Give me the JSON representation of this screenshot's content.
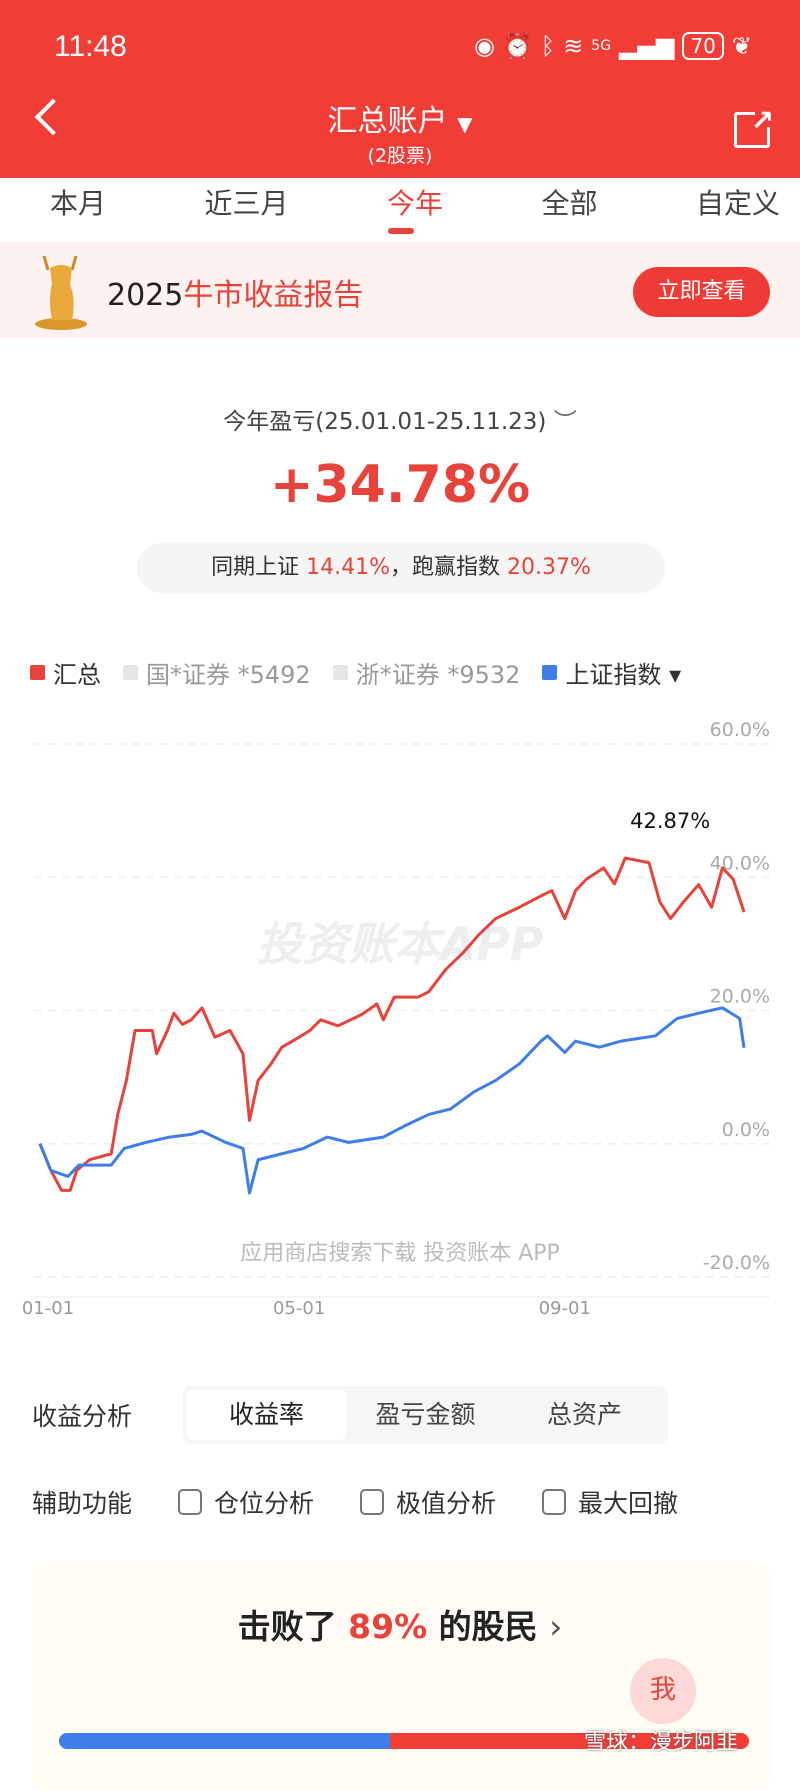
{
  "status": {
    "time": "11:48",
    "network": "5G",
    "battery": "70"
  },
  "header": {
    "title": "汇总账户",
    "subtitle": "(2股票)"
  },
  "tabs": [
    {
      "label": "本月"
    },
    {
      "label": "近三月"
    },
    {
      "label": "今年",
      "active": true
    },
    {
      "label": "全部"
    },
    {
      "label": "自定义"
    }
  ],
  "banner": {
    "year": "2025",
    "text": "牛市收益报告",
    "button": "立即查看"
  },
  "summary": {
    "label": "今年盈亏(25.01.01-25.11.23)",
    "value": "+34.78%",
    "compare_prefix": "同期上证",
    "index_return": "14.41%",
    "compare_mid": "，跑赢指数",
    "excess": "20.37%"
  },
  "legend": [
    {
      "label": "汇总",
      "color": "#e8433b"
    },
    {
      "label": "国*证券 *5492",
      "color": "#e6e6e6"
    },
    {
      "label": "浙*证券 *9532",
      "color": "#e6e6e6"
    },
    {
      "label": "上证指数 ▾",
      "color": "#3f7de8"
    }
  ],
  "watermark": {
    "main": "投资账本APP",
    "bottom": "应用商店搜索下载 投资账本 APP"
  },
  "chart_data": {
    "type": "line",
    "xlabel": "",
    "ylabel": "",
    "x_unit": "day of year 2025",
    "xlim": [
      0,
      326
    ],
    "ylim": [
      -20,
      60
    ],
    "yticks": [
      "60.0%",
      "40.0%",
      "20.0%",
      "0.0%",
      "-20.0%"
    ],
    "ytick_values": [
      60,
      40,
      20,
      0,
      -20
    ],
    "xticks": [
      {
        "label": "01-01",
        "day": 0
      },
      {
        "label": "05-01",
        "day": 120
      },
      {
        "label": "09-01",
        "day": 243
      }
    ],
    "max_label": "42.87%",
    "max_point": [
      271,
      42.87
    ],
    "grid": true,
    "series": [
      {
        "name": "汇总",
        "color": "#e8433b",
        "points": [
          [
            0,
            0
          ],
          [
            5,
            -4
          ],
          [
            10,
            -7
          ],
          [
            14,
            -7
          ],
          [
            17,
            -4
          ],
          [
            23,
            -2.4
          ],
          [
            33,
            -1.5
          ],
          [
            36,
            4.4
          ],
          [
            40,
            9.5
          ],
          [
            44,
            17
          ],
          [
            52,
            17
          ],
          [
            54,
            13.5
          ],
          [
            59,
            17
          ],
          [
            62,
            19.6
          ],
          [
            66,
            17.9
          ],
          [
            70,
            18.6
          ],
          [
            75,
            20.4
          ],
          [
            81,
            16
          ],
          [
            88,
            17
          ],
          [
            94,
            13.5
          ],
          [
            97,
            3.5
          ],
          [
            101,
            9.5
          ],
          [
            107,
            12
          ],
          [
            112,
            14.5
          ],
          [
            120,
            16
          ],
          [
            125,
            17
          ],
          [
            130,
            18.6
          ],
          [
            138,
            17.7
          ],
          [
            149,
            19.4
          ],
          [
            156,
            21
          ],
          [
            159,
            18.6
          ],
          [
            164,
            22
          ],
          [
            175,
            22
          ],
          [
            180,
            22.8
          ],
          [
            188,
            26.2
          ],
          [
            196,
            28.7
          ],
          [
            203,
            31.3
          ],
          [
            211,
            33.8
          ],
          [
            222,
            35.5
          ],
          [
            232,
            37.2
          ],
          [
            237,
            38
          ],
          [
            243,
            33.8
          ],
          [
            248,
            38
          ],
          [
            253,
            39.7
          ],
          [
            261,
            41.4
          ],
          [
            266,
            39
          ],
          [
            271,
            42.87
          ],
          [
            282,
            42.2
          ],
          [
            287,
            36.3
          ],
          [
            292,
            33.8
          ],
          [
            298,
            36.3
          ],
          [
            305,
            38.9
          ],
          [
            311,
            35.5
          ],
          [
            316,
            41.4
          ],
          [
            321,
            39.7
          ],
          [
            326,
            34.78
          ]
        ]
      },
      {
        "name": "上证指数",
        "color": "#3f7de8",
        "points": [
          [
            0,
            0
          ],
          [
            5,
            -4
          ],
          [
            13,
            -4.9
          ],
          [
            18,
            -3.2
          ],
          [
            33,
            -3.2
          ],
          [
            39,
            -0.7
          ],
          [
            49,
            0.2
          ],
          [
            60,
            1
          ],
          [
            70,
            1.4
          ],
          [
            75,
            1.9
          ],
          [
            86,
            0.2
          ],
          [
            94,
            -0.7
          ],
          [
            97,
            -7.4
          ],
          [
            101,
            -2.4
          ],
          [
            112,
            -1.5
          ],
          [
            122,
            -0.7
          ],
          [
            133,
            1
          ],
          [
            143,
            0.2
          ],
          [
            159,
            1
          ],
          [
            169,
            2.7
          ],
          [
            180,
            4.4
          ],
          [
            190,
            5.2
          ],
          [
            201,
            7.8
          ],
          [
            211,
            9.5
          ],
          [
            222,
            12
          ],
          [
            232,
            15.4
          ],
          [
            235,
            16.2
          ],
          [
            243,
            13.7
          ],
          [
            248,
            15.4
          ],
          [
            259,
            14.5
          ],
          [
            269,
            15.4
          ],
          [
            285,
            16.2
          ],
          [
            295,
            18.8
          ],
          [
            305,
            19.6
          ],
          [
            316,
            20.4
          ],
          [
            324,
            18.8
          ],
          [
            326,
            14.41
          ]
        ]
      }
    ]
  },
  "analysis": {
    "label": "收益分析",
    "options": [
      "收益率",
      "盈亏金额",
      "总资产"
    ]
  },
  "aux": {
    "label": "辅助功能",
    "options": [
      "仓位分析",
      "极值分析",
      "最大回撤"
    ]
  },
  "rank": {
    "prefix": "击败了",
    "percent": "89%",
    "suffix": "的股民",
    "me": "我",
    "beat_fraction": 0.48
  },
  "xueqiu": "雪球：漫步阿韭"
}
